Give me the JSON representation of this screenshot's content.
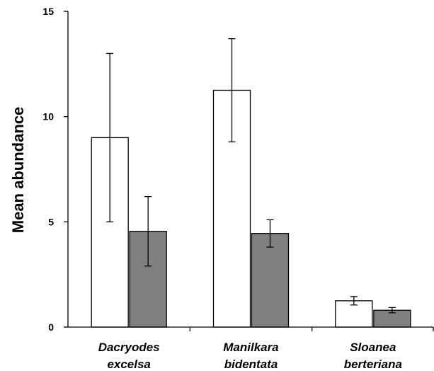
{
  "chart_data": {
    "type": "bar",
    "categories": [
      [
        "Dacryodes",
        "excelsa"
      ],
      [
        "Manilkara",
        "bidentata"
      ],
      [
        "Sloanea",
        "berteriana"
      ]
    ],
    "series": [
      {
        "color": "#ffffff",
        "values": [
          9.0,
          11.25,
          1.25
        ],
        "error": [
          [
            5.0,
            13.0
          ],
          [
            8.8,
            13.7
          ],
          [
            1.05,
            1.45
          ]
        ]
      },
      {
        "color": "#808080",
        "values": [
          4.55,
          4.45,
          0.8
        ],
        "error": [
          [
            2.9,
            6.2
          ],
          [
            3.8,
            5.1
          ],
          [
            0.68,
            0.93
          ]
        ]
      }
    ],
    "xlabel": "",
    "ylabel": "Mean abundance",
    "ylim": [
      0,
      15
    ],
    "yticks": [
      0,
      5,
      10,
      15
    ],
    "grid": false
  }
}
